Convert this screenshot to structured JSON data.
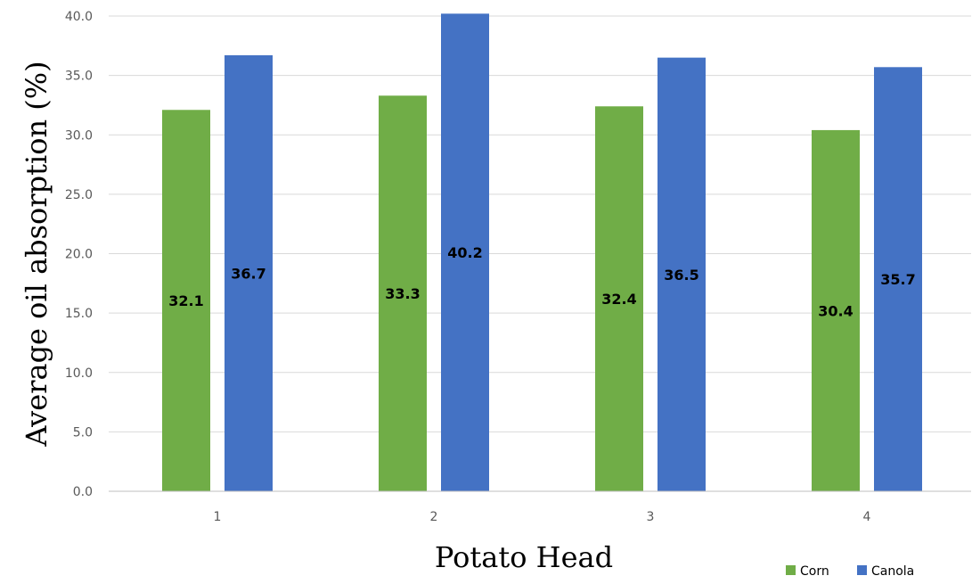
{
  "chart_data": {
    "type": "bar",
    "title": "",
    "xlabel": "Potato Head",
    "ylabel": "Average  oil absorption (%)",
    "categories": [
      "1",
      "2",
      "3",
      "4"
    ],
    "series": [
      {
        "name": "Corn",
        "color": "#70ad47",
        "values": [
          32.1,
          33.3,
          32.4,
          30.4
        ]
      },
      {
        "name": "Canola",
        "color": "#4472c4",
        "values": [
          36.7,
          40.2,
          36.5,
          35.7
        ]
      }
    ],
    "ylim": [
      0,
      40
    ],
    "yticks": [
      "0.0",
      "5.0",
      "10.0",
      "15.0",
      "20.0",
      "25.0",
      "30.0",
      "35.0",
      "40.0"
    ],
    "grid": true,
    "legend": "bottom-right"
  }
}
